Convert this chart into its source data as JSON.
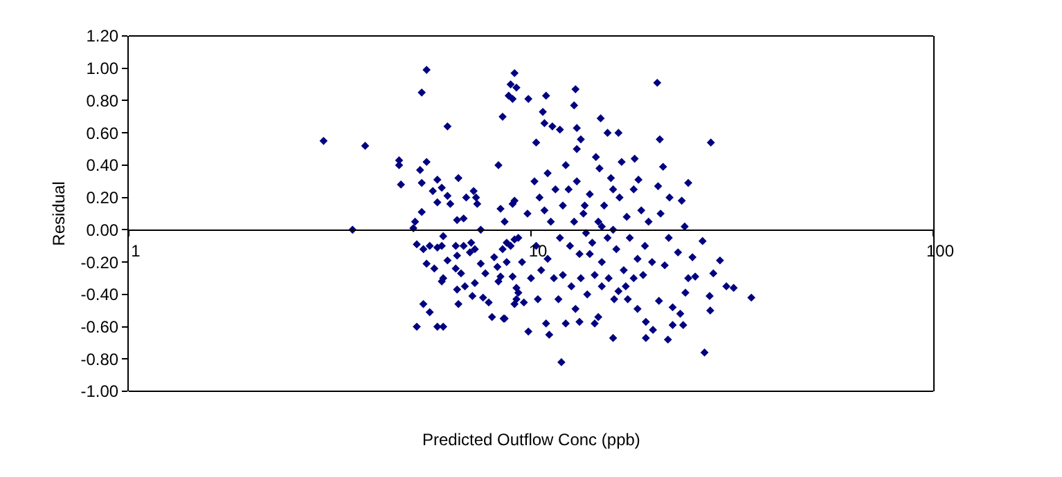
{
  "chart_data": {
    "type": "scatter",
    "xlabel": "Predicted Outflow Conc (ppb)",
    "ylabel": "Residual",
    "log": "x",
    "legend": false,
    "marker": "diamond",
    "xlim": [
      1,
      100
    ],
    "xticks": [
      1,
      10,
      100
    ],
    "ylim": [
      -1.0,
      1.2
    ],
    "yticks": [
      {
        "value": -1.0,
        "label": "-1.00"
      },
      {
        "value": -0.8,
        "label": "-0.80"
      },
      {
        "value": -0.6,
        "label": "-0.60"
      },
      {
        "value": -0.4,
        "label": "-0.40"
      },
      {
        "value": -0.2,
        "label": "-0.20"
      },
      {
        "value": 0,
        "label": "0.00"
      },
      {
        "value": 0.2,
        "label": "0.20"
      },
      {
        "value": 0.4,
        "label": "0.40"
      },
      {
        "value": 0.6,
        "label": "0.60"
      },
      {
        "value": 0.8,
        "label": "0.80"
      },
      {
        "value": 1.0,
        "label": "1.00"
      },
      {
        "value": 1.2,
        "label": "1.20"
      }
    ],
    "series": [
      {
        "color": "#000080",
        "x": [
          3.05,
          3.87,
          3.6,
          5.5,
          5.35,
          6.2,
          4.7,
          4.7,
          4.75,
          5.5,
          5.3,
          5.35,
          5.85,
          6.6,
          5.7,
          6.0,
          6.2,
          5.85,
          6.3,
          6.9,
          7.2,
          7.3,
          7.35,
          5.35,
          6.55,
          6.8,
          5.15,
          5.1,
          7.5,
          8.3,
          8.5,
          8.8,
          9.0,
          8.9,
          9.1,
          9.2,
          8.4,
          8.6,
          9.0,
          9.1,
          5.2,
          5.4,
          5.5,
          5.75,
          5.6,
          5.85,
          6.05,
          6.0,
          6.2,
          6.5,
          6.8,
          6.55,
          6.5,
          6.7,
          6.0,
          6.05,
          6.55,
          6.6,
          6.85,
          7.1,
          7.05,
          7.25,
          7.25,
          7.15,
          7.5,
          7.7,
          7.6,
          7.85,
          8.0,
          8.1,
          8.25,
          8.3,
          8.4,
          8.55,
          5.2,
          5.4,
          5.6,
          5.85,
          6.05,
          8.5,
          8.7,
          8.9,
          9.1,
          8.7,
          9.0,
          9.2,
          9.1,
          9.3,
          20.6,
          12.9,
          12.8,
          10.9,
          9.85,
          10.7,
          10.8,
          11.3,
          11.8,
          13.0,
          14.9,
          15.5,
          16.5,
          13.3,
          10.3,
          20.9,
          28,
          18.1,
          21.3,
          20.7,
          24.6,
          22.1,
          23.7,
          24.1,
          18.5,
          26.7,
          29.5,
          28.4,
          30.6,
          31.9,
          35.3,
          27.8,
          27.9,
          27,
          25.6,
          24.2,
          23.5,
          23.9,
          22.5,
          21.9,
          22.5,
          20.1,
          19.3,
          19.3,
          18.4,
          16.0,
          14.7,
          14.4,
          13.2,
          12.9,
          12.2,
          11.9,
          11.1,
          10.9,
          9.85,
          8.6,
          9.2,
          9.6,
          10.4,
          11.7,
          16.1,
          17.4,
          20.8,
          24.6,
          25.2,
          23.2,
          10.2,
          10.5,
          10.8,
          11.0,
          11.2,
          11.5,
          11.8,
          12.0,
          12.2,
          12.5,
          12.8,
          13.0,
          13.2,
          13.5,
          13.7,
          14.0,
          14.2,
          14.5,
          14.7,
          15.0,
          15.2,
          15.5,
          15.8,
          16.0,
          16.3,
          16.6,
          17.0,
          17.3,
          17.6,
          18.0,
          18.4,
          18.8,
          19.2,
          19.6,
          20.0,
          10.3,
          10.6,
          11.0,
          11.4,
          12.0,
          12.6,
          13.3,
          13.8,
          14.4,
          15.0,
          15.6,
          16.5,
          17.2,
          18.0,
          19.0,
          9.5,
          9.8,
          9.3,
          10.0,
          21.0,
          22.0,
          21.5,
          13.0,
          14.8,
          16.8,
          12.4,
          14.0,
          15.0,
          13.6,
          16.0
        ],
        "values": [
          0.55,
          0.52,
          0.0,
          0.99,
          0.85,
          0.64,
          0.43,
          0.4,
          0.28,
          0.42,
          0.37,
          0.29,
          0.31,
          0.32,
          0.24,
          0.26,
          0.21,
          0.17,
          0.16,
          0.2,
          0.24,
          0.2,
          0.16,
          0.11,
          0.06,
          0.07,
          0.05,
          0.01,
          0.0,
          0.4,
          0.7,
          0.83,
          0.81,
          0.9,
          0.97,
          0.88,
          0.13,
          0.05,
          0.16,
          0.18,
          -0.09,
          -0.12,
          -0.21,
          -0.24,
          -0.1,
          -0.11,
          -0.04,
          -0.1,
          -0.19,
          -0.1,
          -0.1,
          -0.16,
          -0.24,
          -0.27,
          -0.32,
          -0.3,
          -0.37,
          -0.46,
          -0.35,
          -0.08,
          -0.14,
          -0.12,
          -0.33,
          -0.41,
          -0.21,
          -0.27,
          -0.42,
          -0.45,
          -0.54,
          -0.17,
          -0.23,
          -0.32,
          -0.29,
          -0.55,
          -0.6,
          -0.46,
          -0.51,
          -0.6,
          -0.6,
          -0.12,
          -0.08,
          -0.1,
          -0.06,
          -0.2,
          -0.29,
          -0.36,
          -0.46,
          -0.39,
          0.91,
          0.87,
          0.77,
          0.83,
          0.81,
          0.73,
          0.66,
          0.64,
          0.62,
          0.63,
          0.69,
          0.6,
          0.6,
          0.56,
          0.54,
          0.56,
          0.54,
          0.44,
          0.39,
          0.27,
          0.29,
          0.2,
          0.18,
          0.02,
          0.31,
          -0.07,
          -0.19,
          -0.27,
          -0.35,
          -0.36,
          -0.42,
          -0.41,
          -0.5,
          -0.76,
          -0.29,
          -0.39,
          -0.52,
          -0.59,
          -0.48,
          -0.68,
          -0.59,
          -0.62,
          -0.67,
          -0.57,
          -0.49,
          -0.67,
          -0.54,
          -0.58,
          -0.57,
          -0.49,
          -0.58,
          -0.82,
          -0.65,
          -0.58,
          -0.63,
          -0.55,
          -0.43,
          -0.45,
          -0.43,
          -0.43,
          -0.43,
          -0.43,
          -0.44,
          -0.3,
          -0.17,
          -0.14,
          0.3,
          0.2,
          0.12,
          0.35,
          0.05,
          0.25,
          -0.05,
          0.15,
          0.4,
          -0.1,
          0.05,
          0.3,
          -0.15,
          0.1,
          -0.02,
          0.22,
          -0.08,
          0.45,
          0.05,
          -0.2,
          0.15,
          -0.05,
          0.32,
          0.0,
          -0.12,
          0.2,
          -0.25,
          0.08,
          -0.05,
          0.25,
          -0.18,
          0.12,
          -0.1,
          0.05,
          -0.2,
          -0.1,
          -0.25,
          -0.18,
          -0.3,
          -0.28,
          -0.35,
          -0.3,
          -0.4,
          -0.28,
          -0.35,
          -0.3,
          -0.38,
          -0.35,
          -0.3,
          -0.28,
          -0.2,
          0.1,
          -0.05,
          -0.3,
          0.1,
          -0.05,
          -0.22,
          0.5,
          0.38,
          0.42,
          0.25,
          -0.15,
          0.02,
          0.15,
          0.25
        ]
      }
    ]
  }
}
